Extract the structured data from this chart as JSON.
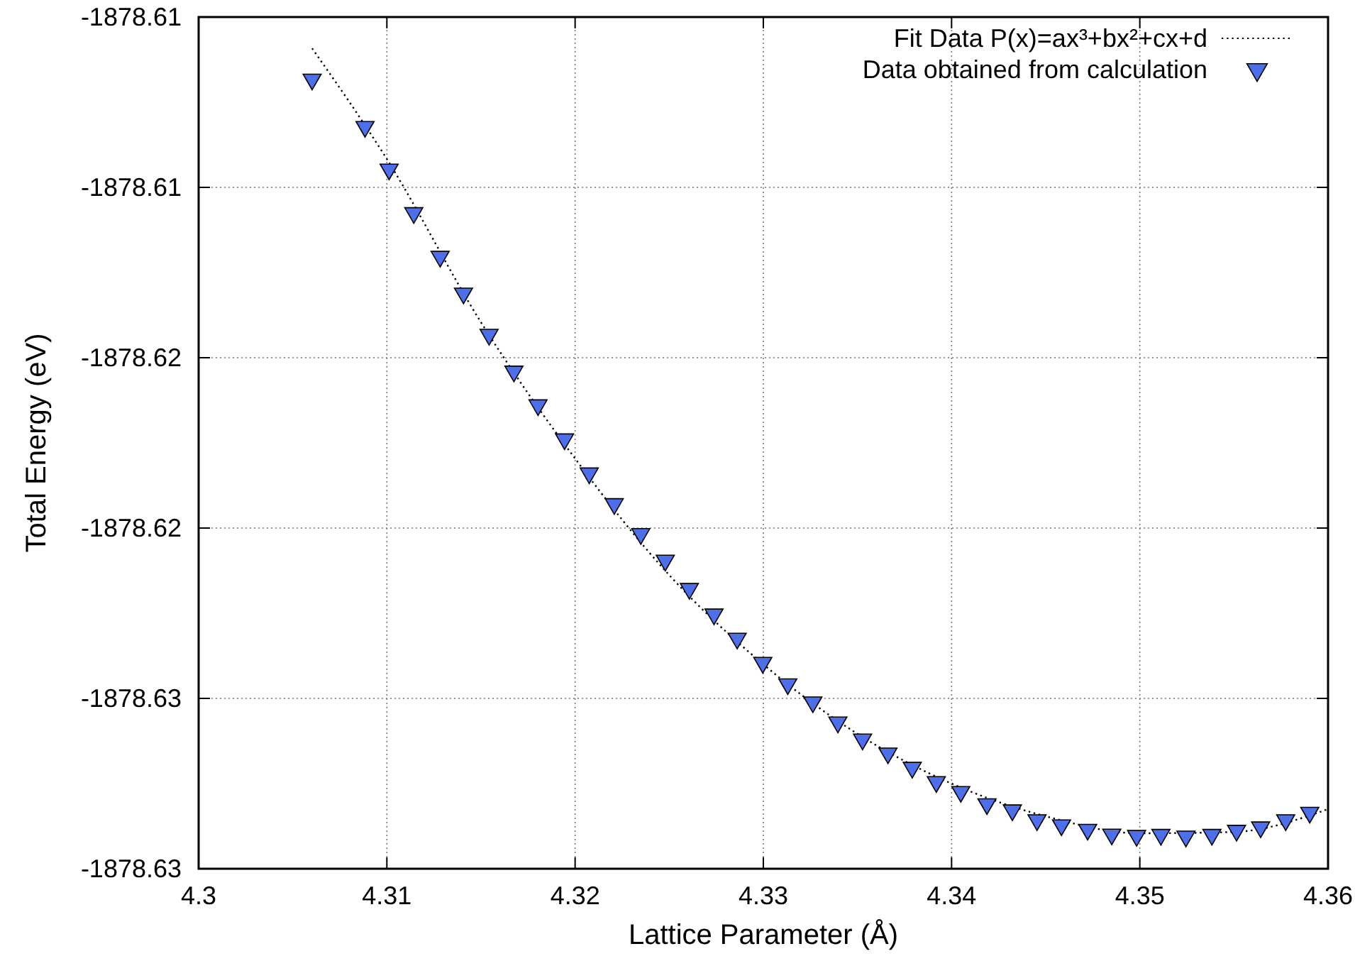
{
  "chart_data": {
    "type": "scatter",
    "xlabel": "Lattice Parameter (Å)",
    "ylabel": "Total Energy (eV)",
    "xlim": [
      4.3,
      4.36
    ],
    "xticks": [
      4.3,
      4.31,
      4.32,
      4.33,
      4.34,
      4.35,
      4.36
    ],
    "ylim": [
      -1878.63,
      -1878.605
    ],
    "yticks": [
      {
        "value": -1878.63,
        "label": "-1878.63"
      },
      {
        "value": -1878.625,
        "label": "-1878.63"
      },
      {
        "value": -1878.62,
        "label": "-1878.62"
      },
      {
        "value": -1878.615,
        "label": "-1878.62"
      },
      {
        "value": -1878.61,
        "label": "-1878.61"
      },
      {
        "value": -1878.605,
        "label": "-1878.61"
      }
    ],
    "grid": true,
    "legend": "top right",
    "series": [
      {
        "name": "Fit Data P(x)=ax³+bx²+cx+d",
        "type": "line",
        "color": "#000000",
        "line_style": "dotted",
        "marker": "none",
        "x": [
          4.30603,
          4.31,
          4.315,
          4.32,
          4.325,
          4.33,
          4.335,
          4.34,
          4.345,
          4.35,
          4.355,
          4.36
        ],
        "values": [
          -1878.60592,
          -1878.60917,
          -1878.61396,
          -1878.61796,
          -1878.62138,
          -1878.624,
          -1878.62604,
          -1878.6275,
          -1878.62846,
          -1878.62896,
          -1878.62892,
          -1878.62825
        ]
      },
      {
        "name": "Data obtained from calculation",
        "color": "#4f6fe8",
        "marker": "triangle",
        "x": [
          4.30603,
          4.30884,
          4.31012,
          4.31143,
          4.31283,
          4.31407,
          4.31543,
          4.31675,
          4.31803,
          4.31944,
          4.32075,
          4.32208,
          4.32349,
          4.32479,
          4.32607,
          4.32738,
          4.32861,
          4.32997,
          4.3313,
          4.33263,
          4.33396,
          4.33527,
          4.33662,
          4.33791,
          4.33919,
          4.34049,
          4.34188,
          4.34323,
          4.34454,
          4.34584,
          4.34723,
          4.34851,
          4.34983,
          4.35112,
          4.35245,
          4.35383,
          4.35514,
          4.35642,
          4.35775,
          4.35903
        ],
        "values": [
          -1878.60683,
          -1878.60822,
          -1878.60947,
          -1878.61075,
          -1878.61203,
          -1878.61311,
          -1878.61432,
          -1878.6154,
          -1878.61639,
          -1878.61739,
          -1878.61839,
          -1878.61929,
          -1878.62017,
          -1878.62095,
          -1878.62178,
          -1878.62253,
          -1878.62324,
          -1878.62395,
          -1878.62458,
          -1878.62511,
          -1878.6257,
          -1878.6262,
          -1878.62661,
          -1878.62703,
          -1878.62745,
          -1878.62774,
          -1878.6281,
          -1878.62828,
          -1878.62857,
          -1878.62872,
          -1878.62885,
          -1878.62899,
          -1878.62903,
          -1878.629,
          -1878.62905,
          -1878.629,
          -1878.62888,
          -1878.62878,
          -1878.62857,
          -1878.62835
        ]
      }
    ]
  }
}
